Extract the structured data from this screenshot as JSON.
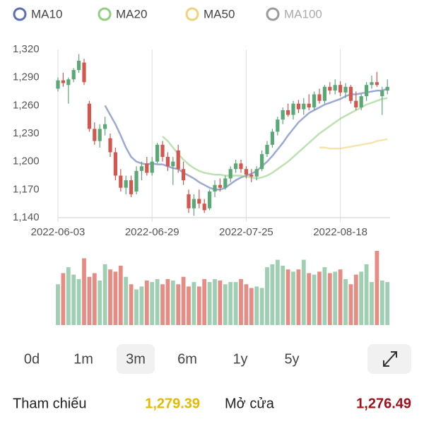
{
  "chart_data": {
    "type": "candlestick",
    "categories": [
      "2022-06-03",
      null,
      null,
      null,
      null,
      null,
      null,
      null,
      null,
      null,
      null,
      null,
      null,
      null,
      null,
      null,
      null,
      null,
      "2022-06-29",
      null,
      null,
      null,
      null,
      null,
      null,
      null,
      null,
      null,
      null,
      null,
      null,
      null,
      null,
      null,
      null,
      null,
      "2022-07-25",
      null,
      null,
      null,
      null,
      null,
      null,
      null,
      null,
      null,
      null,
      null,
      null,
      null,
      null,
      null,
      null,
      null,
      "2022-08-18",
      null,
      null,
      null,
      null,
      null,
      null,
      null,
      null,
      null
    ],
    "open": [
      1278,
      1287,
      1282,
      1288,
      1298,
      1306,
      1262,
      1235,
      1222,
      1235,
      1225,
      1210,
      1185,
      1172,
      1180,
      1168,
      1190,
      1198,
      1188,
      1200,
      1218,
      1205,
      1195,
      1212,
      1192,
      1165,
      1150,
      1160,
      1155,
      1150,
      1168,
      1175,
      1172,
      1182,
      1192,
      1198,
      1192,
      1186,
      1184,
      1192,
      1208,
      1218,
      1232,
      1245,
      1255,
      1250,
      1262,
      1256,
      1262,
      1258,
      1272,
      1265,
      1280,
      1276,
      1282,
      1274,
      1280,
      1265,
      1258,
      1270,
      1282,
      1285,
      1270,
      1276
    ],
    "high": [
      1290,
      1295,
      1290,
      1300,
      1315,
      1310,
      1265,
      1242,
      1240,
      1248,
      1230,
      1215,
      1192,
      1185,
      1185,
      1195,
      1200,
      1205,
      1205,
      1220,
      1222,
      1210,
      1205,
      1218,
      1200,
      1170,
      1165,
      1170,
      1160,
      1170,
      1180,
      1182,
      1185,
      1195,
      1202,
      1202,
      1195,
      1192,
      1195,
      1212,
      1222,
      1235,
      1248,
      1258,
      1262,
      1265,
      1266,
      1268,
      1272,
      1275,
      1278,
      1282,
      1285,
      1288,
      1286,
      1284,
      1282,
      1275,
      1272,
      1285,
      1292,
      1296,
      1280,
      1288
    ],
    "low": [
      1275,
      1280,
      1262,
      1285,
      1295,
      1282,
      1232,
      1218,
      1215,
      1228,
      1205,
      1180,
      1168,
      1165,
      1162,
      1165,
      1180,
      1185,
      1185,
      1198,
      1200,
      1190,
      1175,
      1188,
      1175,
      1145,
      1142,
      1150,
      1145,
      1148,
      1162,
      1168,
      1170,
      1178,
      1188,
      1188,
      1182,
      1178,
      1180,
      1190,
      1205,
      1215,
      1228,
      1240,
      1248,
      1245,
      1252,
      1250,
      1255,
      1255,
      1262,
      1262,
      1272,
      1272,
      1270,
      1268,
      1262,
      1255,
      1255,
      1265,
      1278,
      1280,
      1250,
      1272
    ],
    "close": [
      1287,
      1284,
      1288,
      1298,
      1308,
      1285,
      1235,
      1222,
      1235,
      1240,
      1210,
      1185,
      1172,
      1180,
      1165,
      1190,
      1195,
      1188,
      1200,
      1218,
      1205,
      1195,
      1200,
      1192,
      1180,
      1150,
      1160,
      1155,
      1148,
      1168,
      1175,
      1172,
      1182,
      1192,
      1198,
      1192,
      1186,
      1184,
      1192,
      1208,
      1218,
      1232,
      1245,
      1255,
      1250,
      1262,
      1256,
      1262,
      1258,
      1272,
      1265,
      1280,
      1276,
      1282,
      1274,
      1280,
      1265,
      1258,
      1270,
      1282,
      1285,
      1282,
      1276,
      1280
    ],
    "up_color": "#5aa876",
    "down_color": "#d4574f",
    "series": [
      {
        "name": "MA10",
        "color": "#5a6fb8",
        "values": [
          null,
          null,
          null,
          null,
          null,
          null,
          null,
          null,
          null,
          1260,
          1250,
          1240,
          1228,
          1215,
          1205,
          1200,
          1198,
          1197,
          1198,
          1197,
          1197,
          1195,
          1193,
          1192,
          1188,
          1185,
          1182,
          1178,
          1175,
          1172,
          1170,
          1170,
          1172,
          1176,
          1180,
          1183,
          1185,
          1187,
          1190,
          1195,
          1200,
          1206,
          1213,
          1220,
          1228,
          1235,
          1242,
          1247,
          1252,
          1255,
          1258,
          1261,
          1263,
          1265,
          1267,
          1270,
          1272,
          1272,
          1273,
          1274,
          1275,
          1276,
          1276,
          1278
        ]
      },
      {
        "name": "MA20",
        "color": "#8fcf7f",
        "values": [
          null,
          null,
          null,
          null,
          null,
          null,
          null,
          null,
          null,
          null,
          null,
          null,
          null,
          null,
          null,
          null,
          null,
          null,
          null,
          null,
          1227,
          1222,
          1215,
          1208,
          1202,
          1197,
          1193,
          1190,
          1188,
          1187,
          1186,
          1186,
          1185,
          1185,
          1185,
          1185,
          1184,
          1183,
          1182,
          1183,
          1185,
          1188,
          1192,
          1196,
          1200,
          1205,
          1210,
          1215,
          1220,
          1225,
          1230,
          1234,
          1238,
          1242,
          1246,
          1249,
          1252,
          1255,
          1258,
          1261,
          1263,
          1265,
          1267,
          1268
        ]
      },
      {
        "name": "MA50",
        "color": "#f0d27a",
        "values": [
          null,
          null,
          null,
          null,
          null,
          null,
          null,
          null,
          null,
          null,
          null,
          null,
          null,
          null,
          null,
          null,
          null,
          null,
          null,
          null,
          null,
          null,
          null,
          null,
          null,
          null,
          null,
          null,
          null,
          null,
          null,
          null,
          null,
          null,
          null,
          null,
          null,
          null,
          null,
          null,
          null,
          null,
          null,
          null,
          null,
          null,
          null,
          null,
          null,
          null,
          1215,
          1215,
          1214,
          1214,
          1214,
          1215,
          1216,
          1217,
          1218,
          1219,
          1220,
          1222,
          1223,
          1224
        ]
      },
      {
        "name": "MA100",
        "color": "#9a9a9a",
        "values": [
          null,
          null,
          null,
          null,
          null,
          null,
          null,
          null,
          null,
          null,
          null,
          null,
          null,
          null,
          null,
          null,
          null,
          null,
          null,
          null,
          null,
          null,
          null,
          null,
          null,
          null,
          null,
          null,
          null,
          null,
          null,
          null,
          null,
          null,
          null,
          null,
          null,
          null,
          null,
          null,
          null,
          null,
          null,
          null,
          null,
          null,
          null,
          null,
          null,
          null,
          null,
          null,
          null,
          null,
          null,
          null,
          null,
          null,
          null,
          null,
          null,
          null,
          null,
          null
        ]
      }
    ],
    "volume": {
      "ylim": [
        0,
        100
      ],
      "up_color": "#9fcfb2",
      "down_color": "#e58d85",
      "values": [
        55,
        70,
        78,
        68,
        62,
        90,
        65,
        70,
        60,
        82,
        75,
        72,
        80,
        65,
        55,
        48,
        52,
        60,
        58,
        62,
        55,
        62,
        60,
        55,
        65,
        52,
        58,
        52,
        62,
        58,
        62,
        60,
        55,
        58,
        58,
        62,
        55,
        50,
        52,
        50,
        78,
        82,
        88,
        80,
        75,
        72,
        75,
        88,
        70,
        68,
        72,
        78,
        70,
        72,
        75,
        62,
        55,
        68,
        72,
        82,
        58,
        100,
        60,
        58
      ]
    },
    "ylim": [
      1140,
      1320
    ],
    "yticks": [
      {
        "value": 1140,
        "label": "1,140"
      },
      {
        "value": 1170,
        "label": "1,170"
      },
      {
        "value": 1200,
        "label": "1,200"
      },
      {
        "value": 1230,
        "label": "1,230"
      },
      {
        "value": 1260,
        "label": "1,260"
      },
      {
        "value": 1290,
        "label": "1,290"
      },
      {
        "value": 1320,
        "label": "1,320"
      }
    ]
  },
  "ranges": {
    "options": [
      "0d",
      "1m",
      "3m",
      "6m",
      "1y",
      "5y"
    ],
    "selected": 2
  },
  "quotes": [
    {
      "label": "Tham chiếu",
      "value": "1,279.39",
      "color": "#e6b800"
    },
    {
      "label": "Mở cửa",
      "value": "1,276.49",
      "color": "#a0101a"
    }
  ]
}
